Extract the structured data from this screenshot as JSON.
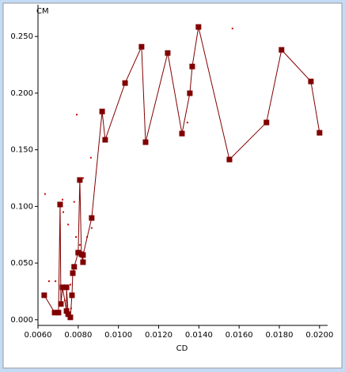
{
  "chart_data": {
    "type": "line",
    "x_label": "CD",
    "y_label": "CM",
    "xlim": [
      0.006,
      0.0204
    ],
    "ylim": [
      -0.005,
      0.278
    ],
    "xticks": [
      {
        "value": 0.006,
        "label": "0.0060"
      },
      {
        "value": 0.008,
        "label": "0.0080"
      },
      {
        "value": 0.01,
        "label": "0.0100"
      },
      {
        "value": 0.012,
        "label": "0.0120"
      },
      {
        "value": 0.014,
        "label": "0.0140"
      },
      {
        "value": 0.016,
        "label": "0.0160"
      },
      {
        "value": 0.018,
        "label": "0.0180"
      },
      {
        "value": 0.02,
        "label": "0.0200"
      }
    ],
    "yticks": [
      {
        "value": 0,
        "label": "0.000"
      },
      {
        "value": 0.05,
        "label": "0.050"
      },
      {
        "value": 0.1,
        "label": "0.100"
      },
      {
        "value": 0.15,
        "label": "0.150"
      },
      {
        "value": 0.2,
        "label": "0.200"
      },
      {
        "value": 0.25,
        "label": "0.250"
      }
    ],
    "series": [
      {
        "color": "#800000",
        "line": true,
        "x": [
          0.00631,
          0.00683,
          0.00702,
          0.0071,
          0.00714,
          0.00722,
          0.00742,
          0.00742,
          0.0075,
          0.00761,
          0.00769,
          0.00773,
          0.0078,
          0.008,
          0.00808,
          0.00816,
          0.00824,
          0.00824,
          0.00867,
          0.00919,
          0.00934,
          0.01033,
          0.01115,
          0.01135,
          0.01245,
          0.01316,
          0.01355,
          0.01367,
          0.01398,
          0.01552,
          0.01736,
          0.01811,
          0.01957,
          0.02
        ],
        "values": [
          0.0216,
          0.0063,
          0.0063,
          0.1017,
          0.0139,
          0.0286,
          0.0077,
          0.0286,
          0.0049,
          0.0021,
          0.0216,
          0.0411,
          0.0467,
          0.0592,
          0.1233,
          0.0578,
          0.0508,
          0.0571,
          0.0898,
          0.1838,
          0.1588,
          0.2089,
          0.2409,
          0.1567,
          0.2354,
          0.1643,
          0.1999,
          0.2235,
          0.2584,
          0.1414,
          0.1741,
          0.2382,
          0.2103,
          0.165
        ]
      },
      {
        "color": "#d00000",
        "line": false,
        "x": [
          0.00635,
          0.00655,
          0.00687,
          0.00793,
          0.00863,
          0.00867,
          0.0078,
          0.00722,
          0.00726,
          0.0075,
          0.00761,
          0.01343,
          0.01567,
          0.00824,
          0.00765,
          0.00734,
          0.00789,
          0.00844,
          0.00808
        ],
        "values": [
          0.111,
          0.034,
          0.034,
          0.181,
          0.143,
          0.081,
          0.104,
          0.106,
          0.095,
          0.084,
          0.031,
          0.174,
          0.257,
          0.125,
          0.01,
          0.017,
          0.073,
          0.073,
          0.066
        ]
      }
    ]
  }
}
